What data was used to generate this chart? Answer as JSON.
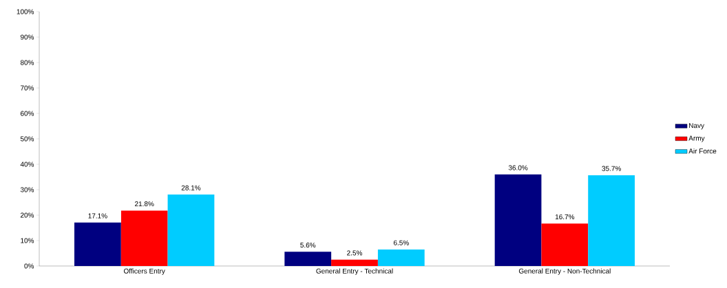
{
  "chart_data": {
    "type": "bar",
    "categories": [
      "Officers Entry",
      "General Entry - Technical",
      "General Entry - Non-Technical"
    ],
    "series": [
      {
        "name": "Navy",
        "color": "#000080",
        "values": [
          17.1,
          5.6,
          36.0
        ],
        "value_labels": [
          "17.1%",
          "5.6%",
          "36.0%"
        ]
      },
      {
        "name": "Army",
        "color": "#ff0000",
        "values": [
          21.8,
          2.5,
          16.7
        ],
        "value_labels": [
          "21.8%",
          "2.5%",
          "16.7%"
        ]
      },
      {
        "name": "Air Force",
        "color": "#00ccff",
        "values": [
          28.1,
          6.5,
          35.7
        ],
        "value_labels": [
          "28.1%",
          "6.5%",
          "35.7%"
        ]
      }
    ],
    "ylim": [
      0,
      100
    ],
    "yticks": [
      {
        "value": 0,
        "label": "0%"
      },
      {
        "value": 10,
        "label": "10%"
      },
      {
        "value": 20,
        "label": "20%"
      },
      {
        "value": 30,
        "label": "30%"
      },
      {
        "value": 40,
        "label": "40%"
      },
      {
        "value": 50,
        "label": "50%"
      },
      {
        "value": 60,
        "label": "60%"
      },
      {
        "value": 70,
        "label": "70%"
      },
      {
        "value": 80,
        "label": "80%"
      },
      {
        "value": 90,
        "label": "90%"
      },
      {
        "value": 100,
        "label": "100%"
      }
    ],
    "grid": false,
    "legend": "right"
  }
}
